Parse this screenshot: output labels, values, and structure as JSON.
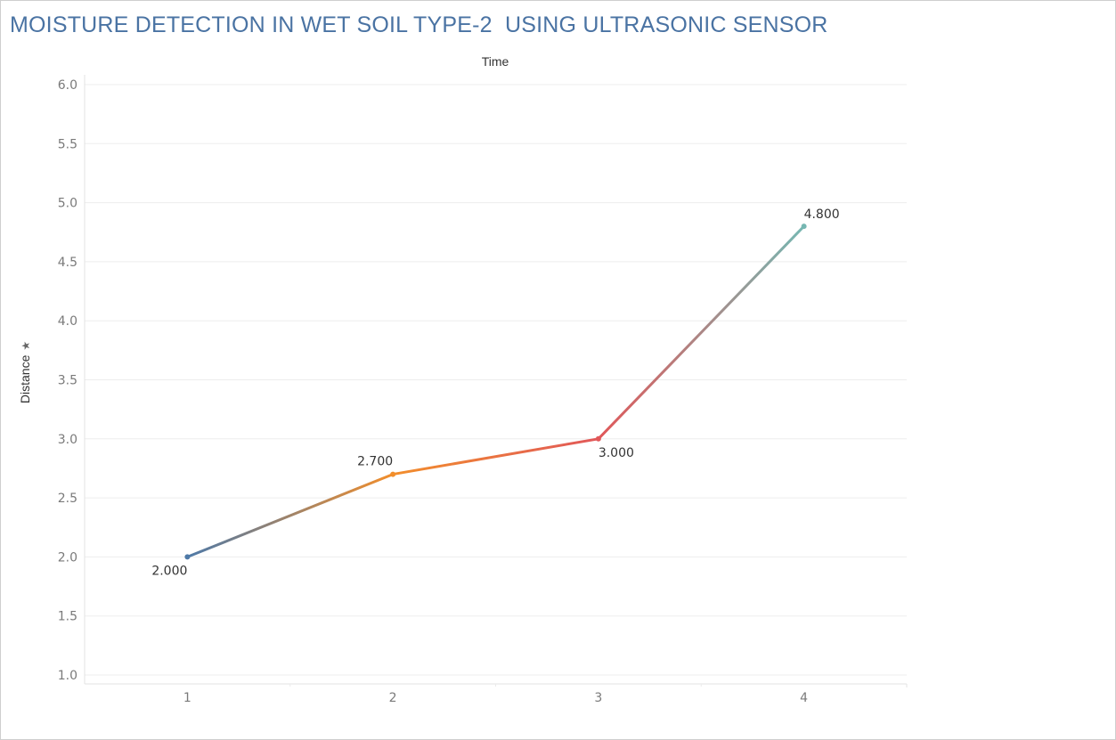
{
  "chart_data": {
    "type": "line",
    "title": "MOISTURE DETECTION IN WET SOIL TYPE-2  USING ULTRASONIC SENSOR",
    "xlabel": "Time",
    "ylabel": "Distance",
    "x": [
      1,
      2,
      3,
      4
    ],
    "series": [
      {
        "values": [
          2.0,
          2.7,
          3.0,
          4.8
        ]
      }
    ],
    "data_labels": [
      "2.000",
      "2.700",
      "3.000",
      "4.800"
    ],
    "y_ticks": [
      "1.0",
      "1.5",
      "2.0",
      "2.5",
      "3.0",
      "3.5",
      "4.0",
      "4.5",
      "5.0",
      "5.5",
      "6.0"
    ],
    "x_ticks": [
      "1",
      "2",
      "3",
      "4"
    ],
    "ylim": [
      1.0,
      6.0
    ],
    "grid": true,
    "point_colors": [
      "#4e79a7",
      "#f28e2b",
      "#e15759",
      "#76b7b2"
    ]
  }
}
